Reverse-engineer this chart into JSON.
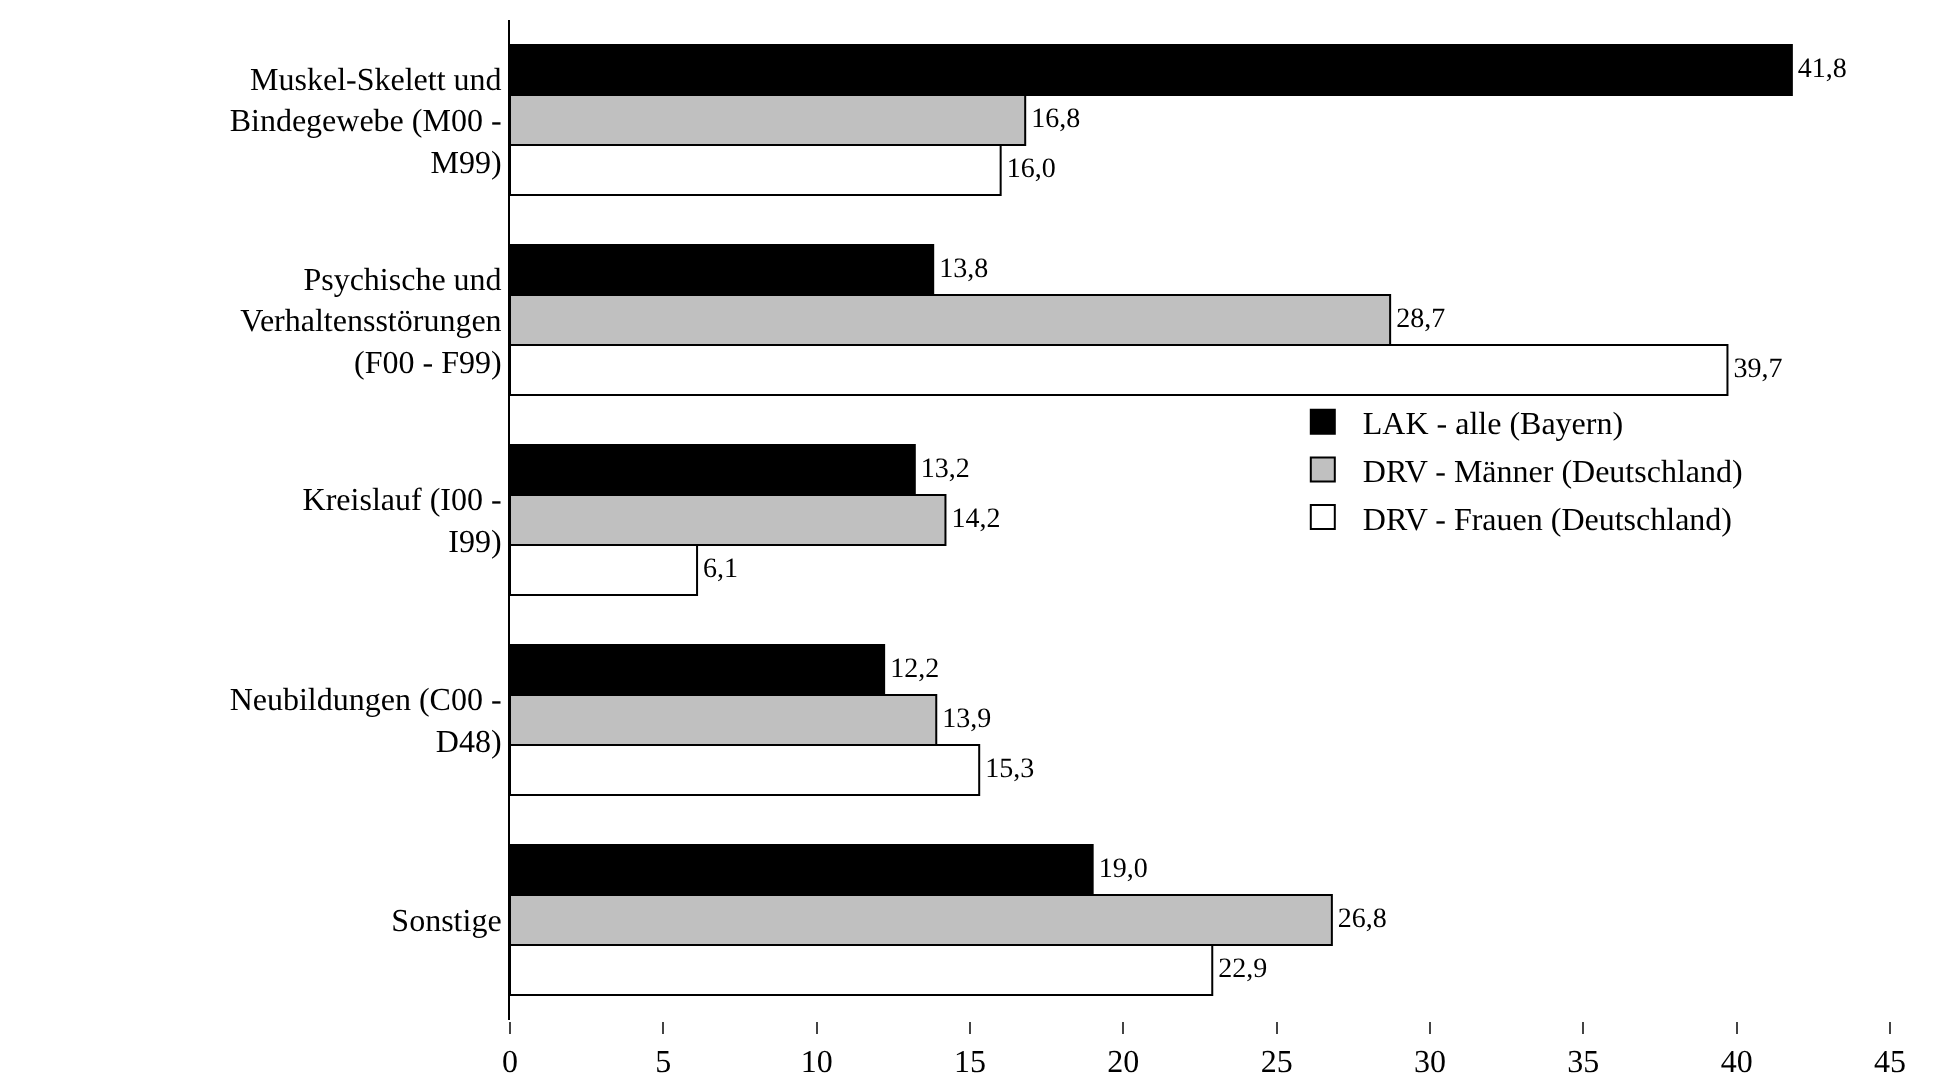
{
  "chart_data": {
    "type": "bar",
    "orientation": "horizontal",
    "categories": [
      "Muskel-Skelett und Bindegewebe (M00 - M99)",
      "Psychische und Verhaltensstörungen (F00 - F99)",
      "Kreislauf (I00 - I99)",
      "Neubildungen (C00 - D48)",
      "Sonstige"
    ],
    "series": [
      {
        "name": "LAK - alle (Bayern)",
        "color": "#000000",
        "values": [
          41.8,
          13.8,
          13.2,
          12.2,
          19.0
        ],
        "value_labels": [
          "41,8",
          "13,8",
          "13,2",
          "12,2",
          "19,0"
        ]
      },
      {
        "name": "DRV - Männer (Deutschland)",
        "color": "#c0c0c0",
        "values": [
          16.8,
          28.7,
          14.2,
          13.9,
          26.8
        ],
        "value_labels": [
          "16,8",
          "28,7",
          "14,2",
          "13,9",
          "26,8"
        ]
      },
      {
        "name": "DRV - Frauen (Deutschland)",
        "color": "#ffffff",
        "values": [
          16.0,
          39.7,
          6.1,
          15.3,
          22.9
        ],
        "value_labels": [
          "16,0",
          "39,7",
          "6,1",
          "15,3",
          "22,9"
        ]
      }
    ],
    "xlim": [
      0,
      45
    ],
    "xticks": [
      0,
      5,
      10,
      15,
      20,
      25,
      30,
      35,
      40,
      45
    ],
    "grid": false,
    "legend": "right"
  }
}
